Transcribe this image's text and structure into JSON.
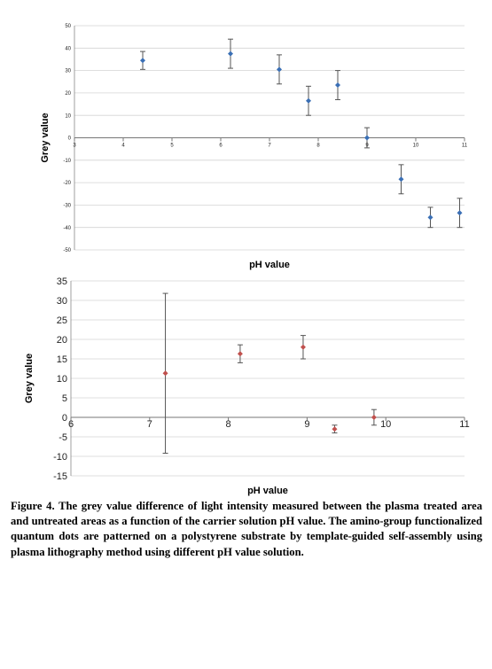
{
  "chart_data": [
    {
      "type": "scatter",
      "xlabel": "pH value",
      "ylabel": "Grey value",
      "xlim": [
        3,
        11
      ],
      "ylim": [
        -50,
        50
      ],
      "xticks": [
        3,
        4,
        5,
        6,
        7,
        8,
        9,
        10,
        11
      ],
      "yticks": [
        -50,
        -40,
        -30,
        -20,
        -10,
        0,
        10,
        20,
        30,
        40,
        50
      ],
      "grid": true,
      "marker_color": "#3a6fb5",
      "points": [
        {
          "x": 4.4,
          "y": 34.5,
          "err": 4
        },
        {
          "x": 6.2,
          "y": 37.5,
          "err": 6.5
        },
        {
          "x": 7.2,
          "y": 30.5,
          "err": 6.5
        },
        {
          "x": 7.8,
          "y": 16.5,
          "err": 6.5
        },
        {
          "x": 8.4,
          "y": 23.5,
          "err": 6.5
        },
        {
          "x": 9.0,
          "y": 0,
          "err": 4.5
        },
        {
          "x": 9.7,
          "y": -18.5,
          "err": 6.5
        },
        {
          "x": 10.3,
          "y": -35.5,
          "err": 4.5
        },
        {
          "x": 10.9,
          "y": -33.5,
          "err": 6.5
        }
      ]
    },
    {
      "type": "scatter",
      "xlabel": "pH value",
      "ylabel": "Grey value",
      "xlim": [
        6,
        11
      ],
      "ylim": [
        -15,
        35
      ],
      "xticks": [
        6,
        7,
        8,
        9,
        10,
        11
      ],
      "yticks": [
        -15,
        -10,
        -5,
        0,
        5,
        10,
        15,
        20,
        25,
        30,
        35
      ],
      "grid": true,
      "marker_color": "#c0504d",
      "points": [
        {
          "x": 7.2,
          "y": 11.3,
          "err": 20.5
        },
        {
          "x": 8.15,
          "y": 16.3,
          "err": 2.3
        },
        {
          "x": 8.95,
          "y": 18,
          "err": 3
        },
        {
          "x": 9.35,
          "y": -3,
          "err": 1
        },
        {
          "x": 9.85,
          "y": 0,
          "err": 2
        }
      ]
    }
  ],
  "caption": "Figure 4. The grey value difference of light intensity measured between the plasma treated area and untreated areas as a function of the carrier solution pH value. The amino-group functionalized quantum dots are patterned on a polystyrene substrate by template-guided self-assembly using plasma lithography method using different pH value solution."
}
